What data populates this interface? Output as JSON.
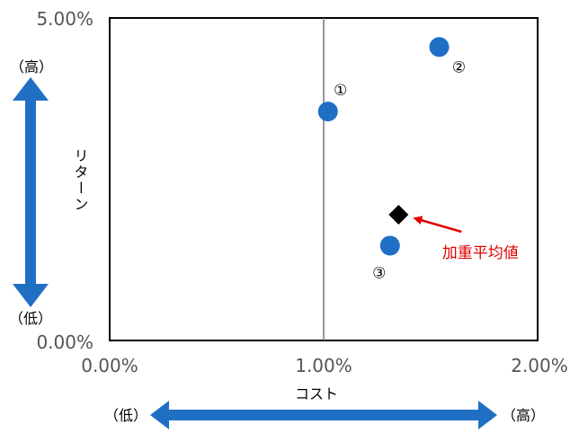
{
  "chart_data": {
    "type": "scatter",
    "xlabel": "コスト",
    "ylabel": "リターン",
    "xlim": [
      0,
      2
    ],
    "ylim": [
      0,
      5
    ],
    "x_ticks": [
      "0.00%",
      "1.00%",
      "2.00%"
    ],
    "y_ticks": [
      "0.00%",
      "5.00%"
    ],
    "reference_line_x": 1.0,
    "points": [
      {
        "label": "①",
        "x": 1.02,
        "y": 3.55
      },
      {
        "label": "②",
        "x": 1.54,
        "y": 4.55
      },
      {
        "label": "③",
        "x": 1.31,
        "y": 1.47
      }
    ],
    "weighted_average": {
      "label": "加重平均値",
      "x": 1.35,
      "y": 1.95
    },
    "y_arrow": {
      "high": "（高）",
      "low": "（低）"
    },
    "x_arrow": {
      "low": "（低）",
      "high": "（高）"
    },
    "colors": {
      "point": "#1F6FC5",
      "arrow": "#1F6FC5",
      "marker": "#000000",
      "annotation": "#E00000",
      "reference_line": "#7F7F7F"
    }
  }
}
